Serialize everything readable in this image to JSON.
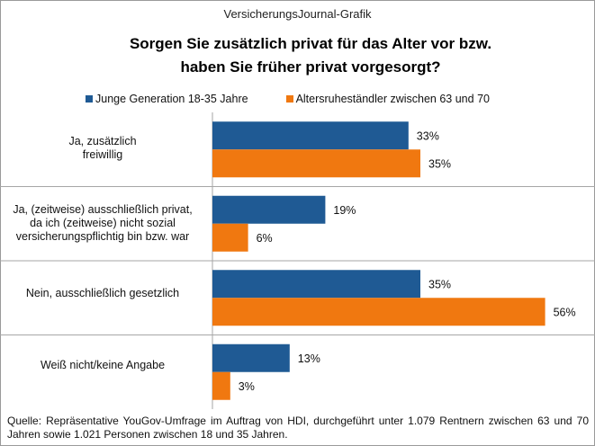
{
  "header": {
    "source_label": "VersicherungsJournal-Grafik"
  },
  "chart_data": {
    "type": "bar",
    "orientation": "horizontal",
    "title": "Sorgen Sie zusätzlich privat für das Alter vor bzw. haben Sie früher privat vorgesorgt?",
    "title_lines": [
      "Sorgen Sie zusätzlich privat für das Alter vor bzw.",
      "haben Sie früher privat vorgesorgt?"
    ],
    "categories": [
      "Ja, zusätzlich freiwillig",
      "Ja, (zeitweise) ausschließlich privat, da ich (zeitweise) nicht sozial versicherungspflichtig bin bzw. war",
      "Nein, ausschließlich gesetzlich",
      "Weiß nicht/keine Angabe"
    ],
    "category_lines": [
      [
        "Ja, zusätzlich",
        "freiwillig"
      ],
      [
        "Ja, (zeitweise) ausschließlich privat,",
        "da ich (zeitweise) nicht sozial",
        "versicherungspflichtig bin bzw. war"
      ],
      [
        "Nein, ausschließlich gesetzlich"
      ],
      [
        "Weiß nicht/keine Angabe"
      ]
    ],
    "series": [
      {
        "name": "Junge Generation 18-35 Jahre",
        "color": "#1f5a94",
        "values": [
          33,
          19,
          35,
          13
        ]
      },
      {
        "name": "Altersruheständler zwischen 63 und 70",
        "color": "#f07810",
        "values": [
          35,
          6,
          56,
          3
        ]
      }
    ],
    "value_suffix": "%",
    "legend_position": "top",
    "xlim": [
      0,
      60
    ],
    "grid": false
  },
  "footnote": "Quelle: Repräsentative YouGov-Umfrage im Auftrag von HDI, durchgeführt unter 1.079 Rentnern zwischen 63 und 70 Jahren sowie 1.021 Personen zwischen 18 und 35 Jahren."
}
